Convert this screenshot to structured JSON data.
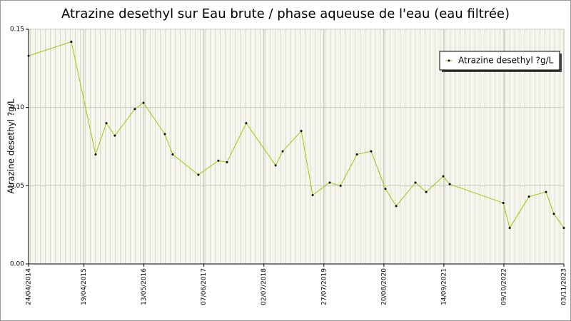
{
  "chart_data": {
    "type": "line",
    "title": "Atrazine desethyl sur Eau brute / phase aqueuse de l'eau (eau filtrée)",
    "y_label": "Atrazine desethyl ?g/L",
    "x": [
      "2014-04-24",
      "2015-01-27",
      "2015-07-04",
      "2015-09-12",
      "2015-11-06",
      "2016-03-15",
      "2016-05-10",
      "2016-09-26",
      "2016-11-16",
      "2017-05-02",
      "2017-09-09",
      "2017-11-04",
      "2018-03-09",
      "2018-09-16",
      "2018-11-01",
      "2019-03-02",
      "2019-05-15",
      "2019-09-03",
      "2019-11-12",
      "2020-02-27",
      "2020-05-29",
      "2020-08-30",
      "2020-11-08",
      "2021-03-13",
      "2021-05-22",
      "2021-09-10",
      "2021-10-22",
      "2022-10-05",
      "2022-11-16",
      "2023-03-21",
      "2023-07-10",
      "2023-08-30",
      "2023-11-03"
    ],
    "series": [
      {
        "name": "Atrazine desethyl ?g/L",
        "color": "#99cc00",
        "values": [
          0.133,
          0.142,
          0.07,
          0.09,
          0.082,
          0.099,
          0.103,
          0.083,
          0.07,
          0.057,
          0.066,
          0.065,
          0.09,
          0.063,
          0.072,
          0.085,
          0.044,
          0.052,
          0.05,
          0.07,
          0.072,
          0.048,
          0.037,
          0.052,
          0.046,
          0.056,
          0.051,
          0.039,
          0.023,
          0.043,
          0.046,
          0.032,
          0.023
        ]
      }
    ],
    "xlim": [
      "2014-04-24",
      "2023-11-03"
    ],
    "xticks": [
      {
        "value": "2014-04-24",
        "label": "24/04/2014"
      },
      {
        "value": "2015-04-19",
        "label": "19/04/2015"
      },
      {
        "value": "2016-05-13",
        "label": "13/05/2016"
      },
      {
        "value": "2017-06-07",
        "label": "07/06/2017"
      },
      {
        "value": "2018-07-02",
        "label": "02/07/2018"
      },
      {
        "value": "2019-07-27",
        "label": "27/07/2019"
      },
      {
        "value": "2020-08-20",
        "label": "20/08/2020"
      },
      {
        "value": "2021-09-14",
        "label": "14/09/2021"
      },
      {
        "value": "2022-10-09",
        "label": "09/10/2022"
      },
      {
        "value": "2023-11-03",
        "label": "03/11/2023"
      }
    ],
    "ylim": [
      0,
      0.15
    ],
    "yticks": [
      {
        "value": 0,
        "label": "0.00"
      },
      0.05,
      {
        "value": 0.1,
        "label": "0.10"
      },
      0.15
    ],
    "grid": true,
    "legend": "upper right"
  }
}
